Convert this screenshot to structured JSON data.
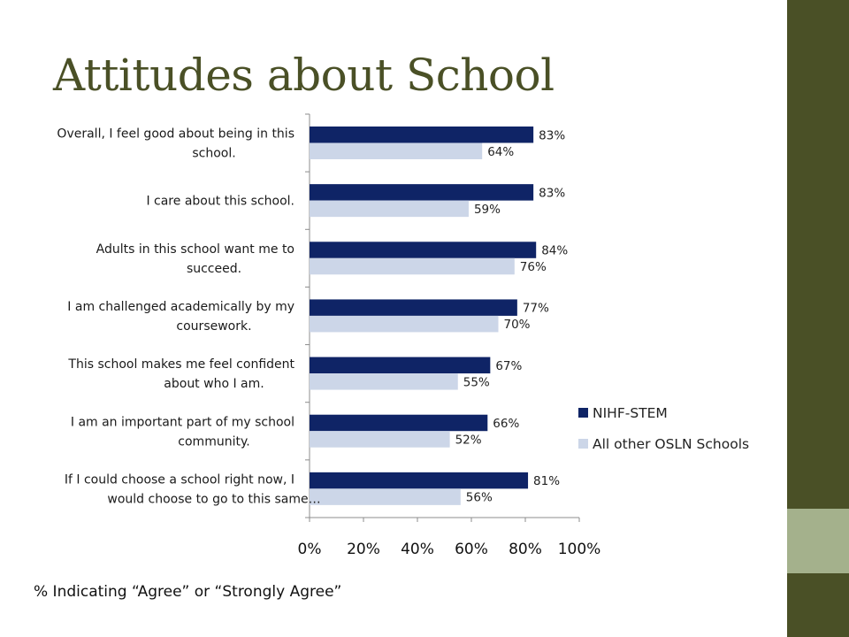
{
  "slide": {
    "title": "Attitudes about School",
    "footnote": "% Indicating “Agree” or “Strongly Agree”"
  },
  "colors": {
    "sidebar_dark": "#4a5026",
    "sidebar_light": "#a4b18c",
    "series_1": "#0f2466",
    "series_2": "#ccd6e8",
    "title": "#4a5026"
  },
  "chart_data": {
    "type": "bar",
    "orientation": "horizontal",
    "categories": [
      [
        "Overall, I feel good about being in this",
        "school."
      ],
      [
        "I care about this school."
      ],
      [
        "Adults in this school want me to",
        "succeed."
      ],
      [
        "I am challenged academically by my",
        "coursework."
      ],
      [
        "This school makes me feel confident",
        "about who I am."
      ],
      [
        "I am an important part of my school",
        "community."
      ],
      [
        "If I could choose a school right now, I",
        "would choose to go to this same…"
      ]
    ],
    "series": [
      {
        "name": "NIHF-STEM",
        "values": [
          83,
          83,
          84,
          77,
          67,
          66,
          81
        ]
      },
      {
        "name": "All other OSLN Schools",
        "values": [
          64,
          59,
          76,
          70,
          55,
          52,
          56
        ]
      }
    ],
    "xlim": [
      0,
      100
    ],
    "xticks": [
      0,
      20,
      40,
      60,
      80,
      100
    ],
    "value_suffix": "%",
    "legend_position": "right",
    "grid": false
  }
}
